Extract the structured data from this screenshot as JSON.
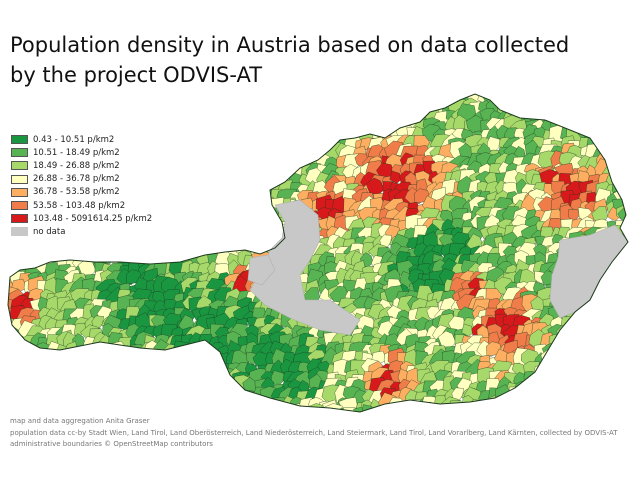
{
  "title": {
    "line1": "Population density in Austria based on data collected",
    "line2": "by the project ODVIS-AT"
  },
  "legend": {
    "items": [
      {
        "label": "0.43 - 10.51 p/km2",
        "color": "#1a9641"
      },
      {
        "label": "10.51 - 18.49 p/km2",
        "color": "#58b453"
      },
      {
        "label": "18.49 - 26.88 p/km2",
        "color": "#a6d96a"
      },
      {
        "label": "26.88 - 36.78 p/km2",
        "color": "#ffffc0"
      },
      {
        "label": "36.78 - 53.58 p/km2",
        "color": "#fdae61"
      },
      {
        "label": "53.58 - 103.48 p/km2",
        "color": "#f07c4a"
      },
      {
        "label": "103.48 - 5091614.25 p/km2",
        "color": "#d7191c"
      },
      {
        "label": "no data",
        "color": "#c8c8c8"
      }
    ]
  },
  "credits": {
    "line1": "map and data aggregation Anita Graser",
    "line2": "population data cc-by Stadt Wien, Land Tirol, Land Oberösterreich, Land Niederösterreich, Land Steiermark, Land Tirol, Land Vorarlberg, Land Kärnten, collected by ODVIS-AT",
    "line3": "administrative boundaries © OpenStreetMap contributors"
  },
  "map_colors": {
    "c1": "#1a9641",
    "c2": "#58b453",
    "c3": "#a6d96a",
    "c4": "#ffffc0",
    "c5": "#fdae61",
    "c6": "#f07c4a",
    "c7": "#d7191c",
    "nodata": "#c8c8c8",
    "border": "#1e3a1e"
  }
}
